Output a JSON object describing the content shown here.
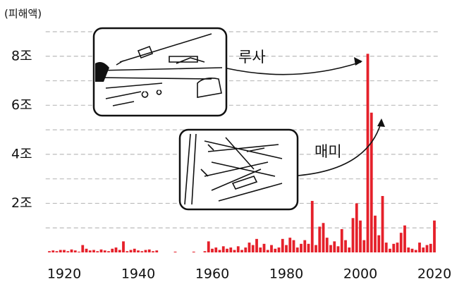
{
  "chart_data": {
    "type": "bar",
    "y_unit_label": "(피해액)",
    "annotations": [
      "루사",
      "매미"
    ],
    "x": [
      1916,
      1917,
      1918,
      1919,
      1920,
      1921,
      1922,
      1923,
      1924,
      1925,
      1926,
      1927,
      1928,
      1929,
      1930,
      1931,
      1932,
      1933,
      1934,
      1935,
      1936,
      1937,
      1938,
      1939,
      1940,
      1941,
      1942,
      1943,
      1944,
      1945,
      1946,
      1947,
      1948,
      1949,
      1950,
      1951,
      1952,
      1953,
      1954,
      1955,
      1956,
      1957,
      1958,
      1959,
      1960,
      1961,
      1962,
      1963,
      1964,
      1965,
      1966,
      1967,
      1968,
      1969,
      1970,
      1971,
      1972,
      1973,
      1974,
      1975,
      1976,
      1977,
      1978,
      1979,
      1980,
      1981,
      1982,
      1983,
      1984,
      1985,
      1986,
      1987,
      1988,
      1989,
      1990,
      1991,
      1992,
      1993,
      1994,
      1995,
      1996,
      1997,
      1998,
      1999,
      2000,
      2001,
      2002,
      2003,
      2004,
      2005,
      2006,
      2007,
      2008,
      2009,
      2010,
      2011,
      2012,
      2013,
      2014,
      2015,
      2016,
      2017,
      2018,
      2019,
      2020
    ],
    "values": [
      0.05,
      0.08,
      0.05,
      0.1,
      0.1,
      0.05,
      0.12,
      0.08,
      0.03,
      0.3,
      0.15,
      0.08,
      0.1,
      0.05,
      0.12,
      0.08,
      0.05,
      0.15,
      0.2,
      0.1,
      0.45,
      0.05,
      0.1,
      0.15,
      0.08,
      0.05,
      0.1,
      0.12,
      0.05,
      0.08,
      0,
      0,
      0,
      0,
      0.03,
      0,
      0,
      0,
      0,
      0.03,
      0,
      0,
      0.05,
      0.45,
      0.15,
      0.2,
      0.1,
      0.25,
      0.15,
      0.2,
      0.1,
      0.25,
      0.1,
      0.2,
      0.4,
      0.3,
      0.55,
      0.2,
      0.35,
      0.1,
      0.3,
      0.15,
      0.2,
      0.55,
      0.3,
      0.6,
      0.5,
      0.2,
      0.35,
      0.5,
      0.35,
      2.1,
      0.3,
      1.05,
      1.2,
      0.6,
      0.3,
      0.45,
      0.25,
      0.95,
      0.5,
      0.2,
      1.4,
      2.0,
      1.3,
      0.5,
      8.1,
      5.7,
      1.5,
      0.7,
      2.3,
      0.4,
      0.15,
      0.35,
      0.4,
      0.8,
      1.1,
      0.2,
      0.15,
      0.1,
      0.4,
      0.2,
      0.3,
      0.35,
      1.3
    ],
    "color": "#e5202a",
    "xlim": [
      1915,
      2021
    ],
    "xticks": [
      1920,
      1940,
      1960,
      1980,
      2000,
      2020
    ],
    "ylim": [
      0,
      9
    ],
    "yticks": [
      {
        "value": 2,
        "label": "2조"
      },
      {
        "value": 4,
        "label": "4조"
      },
      {
        "value": 6,
        "label": "6조"
      },
      {
        "value": 8,
        "label": "8조"
      }
    ],
    "minor_yticks": [
      1,
      3,
      5,
      7,
      9
    ],
    "grid": true
  }
}
